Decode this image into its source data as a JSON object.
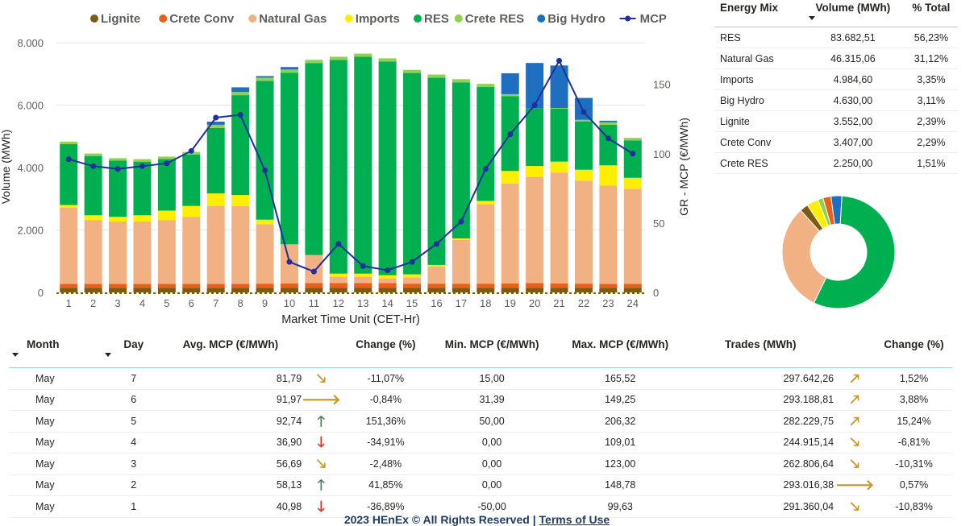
{
  "chart_data": [
    {
      "type": "bar",
      "stacked": true,
      "xlabel": "Market Time Unit (CET-Hr)",
      "ylabel": "Volume (MWh)",
      "y2label": "GR - MCP (€/MWh)",
      "ylim": [
        0,
        8000
      ],
      "y2lim": [
        0,
        180
      ],
      "yticks": [
        "0",
        "2.000",
        "4.000",
        "6.000",
        "8.000"
      ],
      "y2ticks": [
        "0",
        "50",
        "100",
        "150"
      ],
      "grid": true,
      "legend_position": "top",
      "categories": [
        "1",
        "2",
        "3",
        "4",
        "5",
        "6",
        "7",
        "8",
        "9",
        "10",
        "11",
        "12",
        "13",
        "14",
        "15",
        "16",
        "17",
        "18",
        "19",
        "20",
        "21",
        "22",
        "23",
        "24"
      ],
      "series": [
        {
          "name": "Lignite",
          "color": "#7a5c12",
          "values": [
            150,
            150,
            150,
            150,
            150,
            150,
            150,
            150,
            150,
            150,
            150,
            150,
            150,
            150,
            150,
            150,
            150,
            150,
            150,
            150,
            150,
            150,
            150,
            150
          ]
        },
        {
          "name": "Crete Conv",
          "color": "#e8601c",
          "values": [
            120,
            120,
            120,
            120,
            120,
            120,
            120,
            120,
            130,
            140,
            150,
            150,
            150,
            150,
            130,
            130,
            130,
            130,
            140,
            150,
            140,
            130,
            120,
            120
          ]
        },
        {
          "name": "Natural Gas",
          "color": "#f2b183",
          "values": [
            2450,
            2050,
            2000,
            2000,
            2050,
            2150,
            2500,
            2500,
            1900,
            1250,
            900,
            200,
            200,
            150,
            200,
            550,
            1400,
            2550,
            3200,
            3400,
            3550,
            3300,
            3150,
            3050
          ]
        },
        {
          "name": "Imports",
          "color": "#ffee00",
          "values": [
            80,
            150,
            150,
            200,
            300,
            350,
            400,
            350,
            150,
            0,
            0,
            100,
            100,
            100,
            100,
            50,
            50,
            100,
            400,
            350,
            350,
            350,
            650,
            350
          ]
        },
        {
          "name": "RES",
          "color": "#00b050",
          "values": [
            1950,
            1900,
            1800,
            1720,
            1650,
            1650,
            2100,
            3200,
            4450,
            5500,
            6150,
            6850,
            6950,
            6850,
            6450,
            6000,
            5000,
            3650,
            2400,
            1850,
            1700,
            1550,
            1300,
            1200
          ]
        },
        {
          "name": "Crete RES",
          "color": "#92d050",
          "values": [
            80,
            80,
            80,
            80,
            80,
            80,
            100,
            100,
            100,
            100,
            100,
            100,
            100,
            100,
            100,
            100,
            100,
            100,
            60,
            0,
            20,
            50,
            80,
            80
          ]
        },
        {
          "name": "Big Hydro",
          "color": "#1f6fc0",
          "values": [
            0,
            0,
            0,
            0,
            0,
            0,
            100,
            150,
            50,
            80,
            0,
            0,
            0,
            0,
            0,
            0,
            0,
            0,
            670,
            1450,
            1360,
            700,
            50,
            0
          ]
        }
      ],
      "line": {
        "name": "MCP",
        "color": "#1f2f9e",
        "values": [
          96,
          91,
          89,
          91,
          93,
          102,
          126,
          128,
          88,
          22,
          15,
          35,
          19,
          16,
          22,
          35,
          51,
          89,
          114,
          135,
          167,
          130,
          111,
          100
        ]
      }
    },
    {
      "type": "pie",
      "donut": true,
      "labels": [
        "RES",
        "Natural Gas",
        "Lignite",
        "Imports",
        "Crete RES",
        "Crete Conv",
        "Big Hydro"
      ],
      "values": [
        56.23,
        31.12,
        2.39,
        3.35,
        1.51,
        2.29,
        3.11
      ],
      "colors": [
        "#00b050",
        "#f2b183",
        "#7a5c12",
        "#ffee00",
        "#92d050",
        "#e8601c",
        "#1f6fc0"
      ]
    }
  ],
  "energy_mix": {
    "headers": [
      "Energy Mix",
      "Volume (MWh)",
      "% Total"
    ],
    "rows": [
      [
        "RES",
        "83.682,51",
        "56,23%"
      ],
      [
        "Natural Gas",
        "46.315,06",
        "31,12%"
      ],
      [
        "Imports",
        "4.984,60",
        "3,35%"
      ],
      [
        "Big Hydro",
        "4.630,00",
        "3,11%"
      ],
      [
        "Lignite",
        "3.552,00",
        "2,39%"
      ],
      [
        "Crete Conv",
        "3.407,00",
        "2,29%"
      ],
      [
        "Crete RES",
        "2.250,00",
        "1,51%"
      ]
    ]
  },
  "daily": {
    "headers": [
      "Month",
      "Day",
      "Avg. MCP (€/MWh)",
      "",
      "Change (%)",
      "Min. MCP (€/MWh)",
      "Max. MCP (€/MWh)",
      "Trades (MWh)",
      "",
      "Change (%)"
    ],
    "rows": [
      {
        "month": "May",
        "day": "7",
        "avg": "81,79",
        "arrow1": "down-right",
        "chg1": "-11,07%",
        "min": "15,00",
        "max": "165,52",
        "trades": "297.642,26",
        "arrow2": "up-right",
        "chg2": "1,52%"
      },
      {
        "month": "May",
        "day": "6",
        "avg": "91,97",
        "arrow1": "right",
        "chg1": "-0,84%",
        "min": "31,39",
        "max": "149,25",
        "trades": "293.188,81",
        "arrow2": "up-right",
        "chg2": "3,88%"
      },
      {
        "month": "May",
        "day": "5",
        "avg": "92,74",
        "arrow1": "up",
        "chg1": "151,36%",
        "min": "50,00",
        "max": "206,32",
        "trades": "282.229,75",
        "arrow2": "up-right",
        "chg2": "15,24%"
      },
      {
        "month": "May",
        "day": "4",
        "avg": "36,90",
        "arrow1": "down",
        "chg1": "-34,91%",
        "min": "0,00",
        "max": "109,01",
        "trades": "244.915,14",
        "arrow2": "down-right",
        "chg2": "-6,81%"
      },
      {
        "month": "May",
        "day": "3",
        "avg": "56,69",
        "arrow1": "down-right",
        "chg1": "-2,48%",
        "min": "0,00",
        "max": "123,00",
        "trades": "262.806,64",
        "arrow2": "down-right",
        "chg2": "-10,31%"
      },
      {
        "month": "May",
        "day": "2",
        "avg": "58,13",
        "arrow1": "up",
        "chg1": "41,85%",
        "min": "0,00",
        "max": "148,78",
        "trades": "293.016,38",
        "arrow2": "right",
        "chg2": "0,57%"
      },
      {
        "month": "May",
        "day": "1",
        "avg": "40,98",
        "arrow1": "down",
        "chg1": "-36,89%",
        "min": "-50,00",
        "max": "99,63",
        "trades": "291.360,04",
        "arrow2": "down-right",
        "chg2": "-10,83%"
      }
    ]
  },
  "arrow_styles": {
    "up": {
      "glyph": "🡑",
      "color": "#4a8a5a"
    },
    "down": {
      "glyph": "🡓",
      "color": "#d23a2a"
    },
    "right": {
      "glyph": "🡒",
      "color": "#c89528"
    },
    "up-right": {
      "glyph": "🡕",
      "color": "#c89528"
    },
    "down-right": {
      "glyph": "🡖",
      "color": "#c89528"
    }
  },
  "footer": {
    "copyright": "2023 HEnEx © All Rights Reserved |",
    "terms": "Terms of Use"
  }
}
